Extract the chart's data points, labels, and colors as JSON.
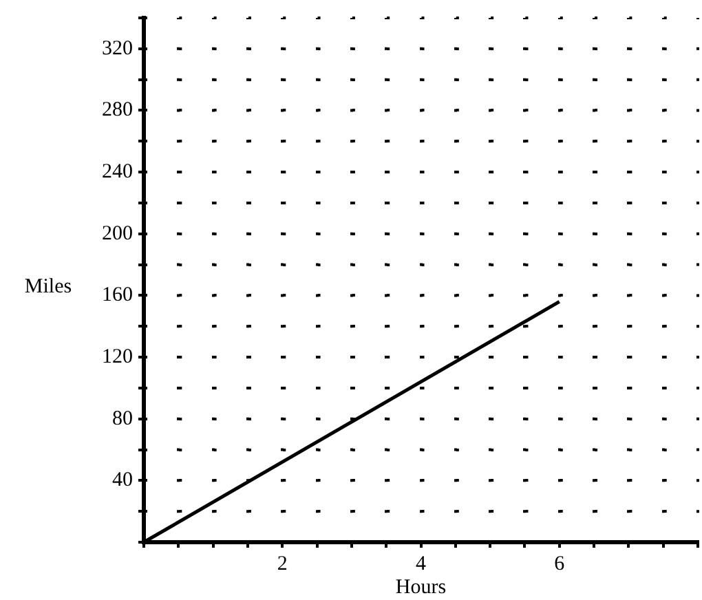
{
  "chart_data": {
    "type": "line",
    "xlabel": "Hours",
    "ylabel": "Miles",
    "x": [
      0,
      6
    ],
    "series": [
      {
        "color": "#000000",
        "values": [
          0,
          156
        ]
      }
    ],
    "xlim": [
      0,
      8
    ],
    "xticks": [
      {
        "value": 0,
        "label": null
      },
      {
        "value": 0.5,
        "label": null
      },
      {
        "value": 1,
        "label": null
      },
      {
        "value": 1.5,
        "label": null
      },
      2,
      {
        "value": 2.5,
        "label": null
      },
      {
        "value": 3,
        "label": null
      },
      {
        "value": 3.5,
        "label": null
      },
      4,
      {
        "value": 4.5,
        "label": null
      },
      {
        "value": 5,
        "label": null
      },
      {
        "value": 5.5,
        "label": null
      },
      6,
      {
        "value": 6.5,
        "label": null
      },
      {
        "value": 7,
        "label": null
      },
      {
        "value": 7.5,
        "label": null
      },
      {
        "value": 8,
        "label": null
      }
    ],
    "ylim": [
      0,
      340
    ],
    "yticks": [
      {
        "value": 0,
        "label": null
      },
      {
        "value": 20,
        "label": null
      },
      40,
      {
        "value": 60,
        "label": null
      },
      80,
      {
        "value": 100,
        "label": null
      },
      120,
      {
        "value": 140,
        "label": null
      },
      160,
      {
        "value": 180,
        "label": null
      },
      200,
      {
        "value": 220,
        "label": null
      },
      240,
      {
        "value": 260,
        "label": null
      },
      280,
      {
        "value": 300,
        "label": null
      },
      320,
      {
        "value": 340,
        "label": null
      }
    ],
    "grid": true,
    "legend": false,
    "line_style": "solid"
  }
}
